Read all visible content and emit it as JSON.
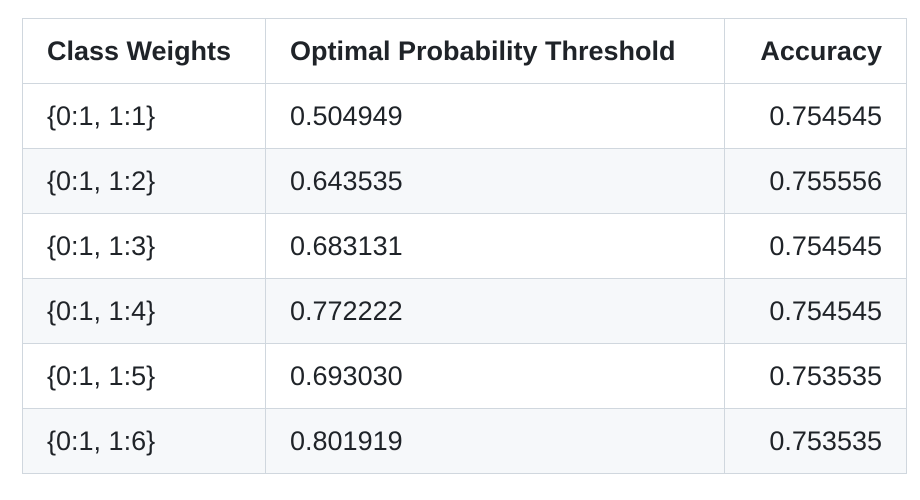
{
  "table": {
    "headers": [
      "Class Weights",
      "Optimal Probability Threshold",
      "Accuracy"
    ],
    "rows": [
      [
        "{0:1, 1:1}",
        "0.504949",
        "0.754545"
      ],
      [
        "{0:1, 1:2}",
        "0.643535",
        "0.755556"
      ],
      [
        "{0:1, 1:3}",
        "0.683131",
        "0.754545"
      ],
      [
        "{0:1, 1:4}",
        "0.772222",
        "0.754545"
      ],
      [
        "{0:1, 1:5}",
        "0.693030",
        "0.753535"
      ],
      [
        "{0:1, 1:6}",
        "0.801919",
        "0.753535"
      ]
    ]
  },
  "colors": {
    "border": "#d0d7de",
    "stripe": "#f6f8fa",
    "text": "#1f2328"
  }
}
